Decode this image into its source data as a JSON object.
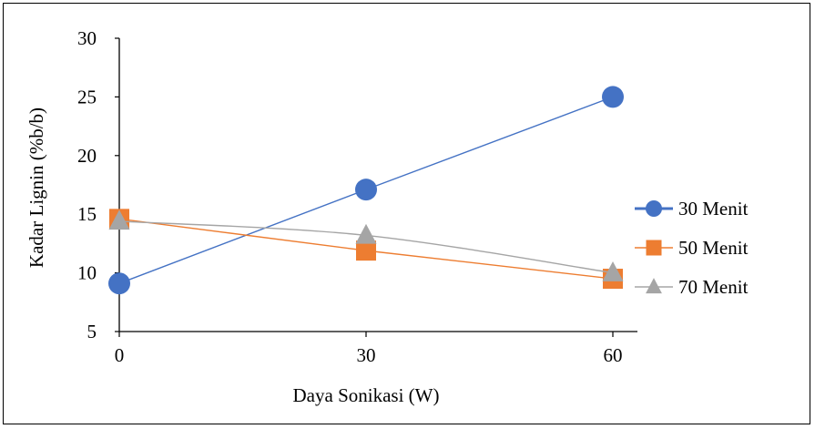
{
  "chart_data": {
    "type": "line",
    "title": "",
    "xlabel": "Daya Sonikasi (W)",
    "ylabel": "Kadar Lignin (%b/b)",
    "x": [
      0,
      30,
      60
    ],
    "x_tick_labels": [
      "0",
      "30",
      "60"
    ],
    "ylim": [
      5,
      30
    ],
    "y_ticks": [
      5,
      10,
      15,
      20,
      25,
      30
    ],
    "grid": false,
    "legend_position": "right",
    "series": [
      {
        "name": "30 Menit",
        "values": [
          9.1,
          17.1,
          25.0
        ],
        "color": "#4472C4",
        "marker": "circle",
        "line": "straight"
      },
      {
        "name": "50 Menit",
        "values": [
          14.6,
          11.9,
          9.5
        ],
        "color": "#ED7D31",
        "marker": "square",
        "line": "straight"
      },
      {
        "name": "70 Menit",
        "values": [
          14.4,
          13.2,
          10.0
        ],
        "color": "#A5A5A5",
        "marker": "triangle",
        "line": "smooth"
      }
    ]
  }
}
